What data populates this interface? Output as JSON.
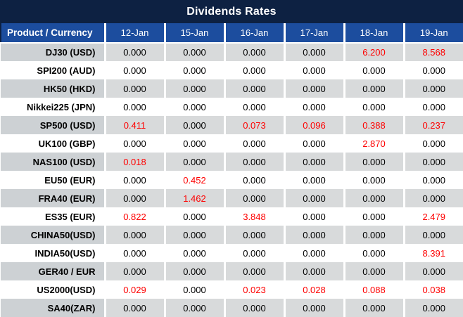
{
  "title": "Dividends Rates",
  "colors": {
    "title_bar_bg": "#0d2142",
    "header_row_bg": "#1c4d9e",
    "header_text": "#ffffff",
    "row_alt_bg": "#d8dadb",
    "row_alt_label_bg": "#cdd1d4",
    "row_bg": "#ffffff",
    "value_text": "#000000",
    "nonzero_value_text": "#fe0000"
  },
  "chart_data": {
    "type": "table",
    "title": "Dividends Rates",
    "columns": [
      "Product / Currency",
      "12-Jan",
      "15-Jan",
      "16-Jan",
      "17-Jan",
      "18-Jan",
      "19-Jan"
    ],
    "rows": [
      {
        "product": "DJ30 (USD)",
        "values": [
          "0.000",
          "0.000",
          "0.000",
          "0.000",
          "6.200",
          "8.568"
        ]
      },
      {
        "product": "SPI200 (AUD)",
        "values": [
          "0.000",
          "0.000",
          "0.000",
          "0.000",
          "0.000",
          "0.000"
        ]
      },
      {
        "product": "HK50 (HKD)",
        "values": [
          "0.000",
          "0.000",
          "0.000",
          "0.000",
          "0.000",
          "0.000"
        ]
      },
      {
        "product": "Nikkei225 (JPN)",
        "values": [
          "0.000",
          "0.000",
          "0.000",
          "0.000",
          "0.000",
          "0.000"
        ]
      },
      {
        "product": "SP500 (USD)",
        "values": [
          "0.411",
          "0.000",
          "0.073",
          "0.096",
          "0.388",
          "0.237"
        ]
      },
      {
        "product": "UK100 (GBP)",
        "values": [
          "0.000",
          "0.000",
          "0.000",
          "0.000",
          "2.870",
          "0.000"
        ]
      },
      {
        "product": "NAS100 (USD)",
        "values": [
          "0.018",
          "0.000",
          "0.000",
          "0.000",
          "0.000",
          "0.000"
        ]
      },
      {
        "product": "EU50 (EUR)",
        "values": [
          "0.000",
          "0.452",
          "0.000",
          "0.000",
          "0.000",
          "0.000"
        ]
      },
      {
        "product": "FRA40 (EUR)",
        "values": [
          "0.000",
          "1.462",
          "0.000",
          "0.000",
          "0.000",
          "0.000"
        ]
      },
      {
        "product": "ES35 (EUR)",
        "values": [
          "0.822",
          "0.000",
          "3.848",
          "0.000",
          "0.000",
          "2.479"
        ]
      },
      {
        "product": "CHINA50(USD)",
        "values": [
          "0.000",
          "0.000",
          "0.000",
          "0.000",
          "0.000",
          "0.000"
        ]
      },
      {
        "product": "INDIA50(USD)",
        "values": [
          "0.000",
          "0.000",
          "0.000",
          "0.000",
          "0.000",
          "8.391"
        ]
      },
      {
        "product": "GER40 / EUR",
        "values": [
          "0.000",
          "0.000",
          "0.000",
          "0.000",
          "0.000",
          "0.000"
        ]
      },
      {
        "product": "US2000(USD)",
        "values": [
          "0.029",
          "0.000",
          "0.023",
          "0.028",
          "0.088",
          "0.038"
        ]
      },
      {
        "product": "SA40(ZAR)",
        "values": [
          "0.000",
          "0.000",
          "0.000",
          "0.000",
          "0.000",
          "0.000"
        ]
      }
    ]
  }
}
